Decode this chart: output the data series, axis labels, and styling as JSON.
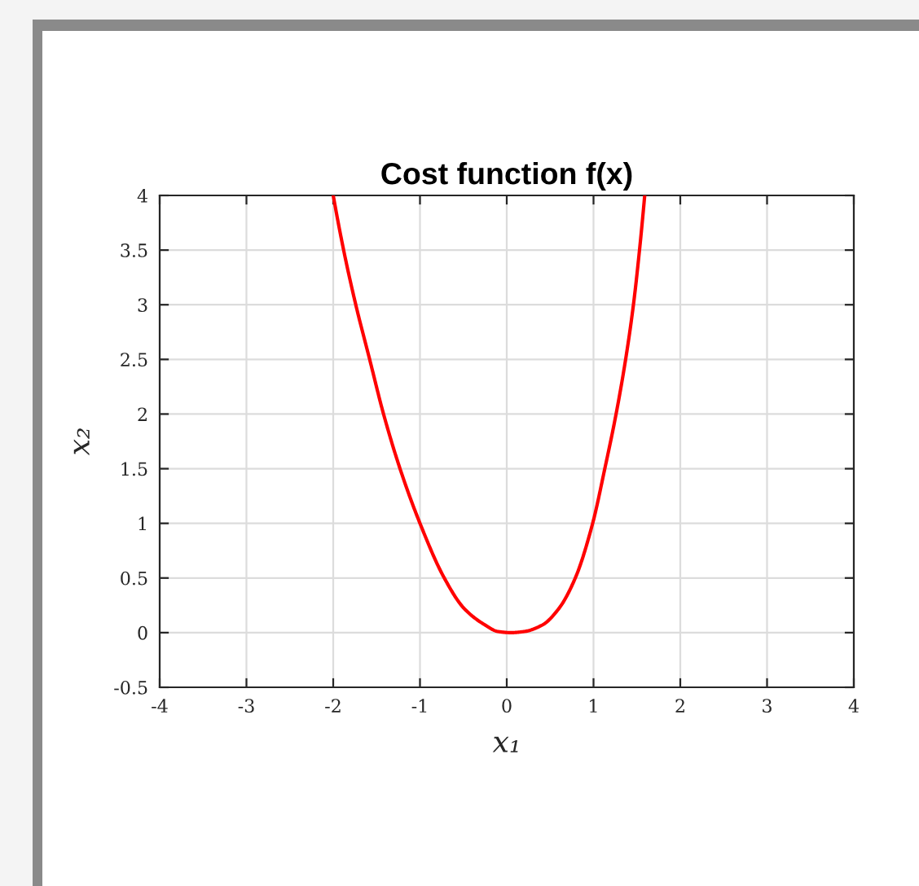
{
  "chart_data": {
    "type": "line",
    "title": "Cost function f(x)",
    "xlabel": "x₁",
    "ylabel": "x₂",
    "x": [
      -2.0,
      -1.88,
      -1.74,
      -1.58,
      -1.42,
      -1.23,
      -1.0,
      -0.72,
      -0.49,
      -0.25,
      -0.1,
      0.05,
      0.2,
      0.41,
      0.6,
      0.79,
      0.99,
      1.13,
      1.26,
      1.37,
      1.46,
      1.53,
      1.59
    ],
    "values": [
      4.0,
      3.5,
      3.0,
      2.5,
      2.0,
      1.5,
      1.0,
      0.5,
      0.22,
      0.07,
      0.01,
      0.0,
      0.01,
      0.07,
      0.22,
      0.5,
      1.0,
      1.5,
      2.0,
      2.5,
      3.0,
      3.5,
      4.0
    ],
    "color": "#ff0000",
    "line_style": "solid",
    "xlim": [
      -4,
      4
    ],
    "ylim": [
      -0.5,
      4
    ],
    "xticks": [
      -4,
      -3,
      -2,
      -1,
      0,
      1,
      2,
      3,
      4
    ],
    "yticks": [
      -0.5,
      0,
      0.5,
      1,
      1.5,
      2,
      2.5,
      3,
      3.5,
      4
    ],
    "grid": true
  }
}
